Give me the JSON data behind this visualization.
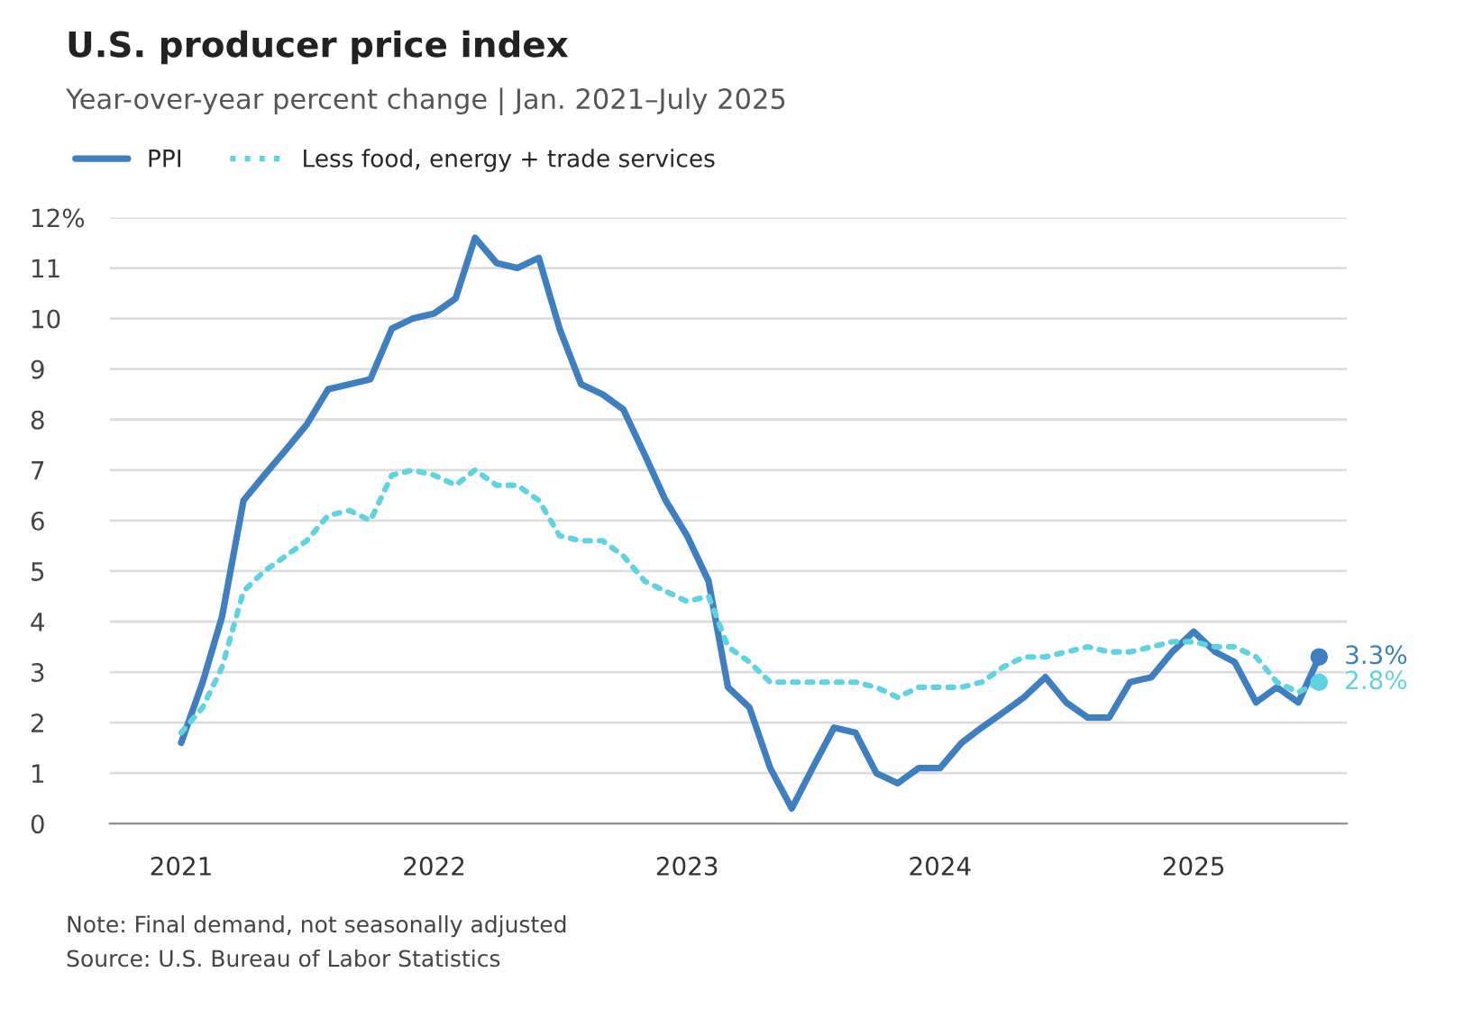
{
  "chart_data": {
    "type": "line",
    "title": "U.S. producer price index",
    "subtitle": "Year-over-year percent change | Jan. 2021–July 2025",
    "x": [
      "2021-01",
      "2021-02",
      "2021-03",
      "2021-04",
      "2021-05",
      "2021-06",
      "2021-07",
      "2021-08",
      "2021-09",
      "2021-10",
      "2021-11",
      "2021-12",
      "2022-01",
      "2022-02",
      "2022-03",
      "2022-04",
      "2022-05",
      "2022-06",
      "2022-07",
      "2022-08",
      "2022-09",
      "2022-10",
      "2022-11",
      "2022-12",
      "2023-01",
      "2023-02",
      "2023-03",
      "2023-04",
      "2023-05",
      "2023-06",
      "2023-07",
      "2023-08",
      "2023-09",
      "2023-10",
      "2023-11",
      "2023-12",
      "2024-01",
      "2024-02",
      "2024-03",
      "2024-04",
      "2024-05",
      "2024-06",
      "2024-07",
      "2024-08",
      "2024-09",
      "2024-10",
      "2024-11",
      "2024-12",
      "2025-01",
      "2025-02",
      "2025-03",
      "2025-04",
      "2025-05",
      "2025-06",
      "2025-07"
    ],
    "series": [
      {
        "name": "PPI",
        "color": "#3d7fc1",
        "line_style": "solid",
        "values": [
          1.6,
          2.8,
          4.1,
          6.4,
          6.9,
          7.4,
          7.9,
          8.6,
          8.7,
          8.8,
          9.8,
          10.0,
          10.1,
          10.4,
          11.6,
          11.1,
          11.0,
          11.2,
          9.8,
          8.7,
          8.5,
          8.2,
          7.3,
          6.4,
          5.7,
          4.8,
          2.7,
          2.3,
          1.1,
          0.3,
          1.1,
          1.9,
          1.8,
          1.0,
          0.8,
          1.1,
          1.1,
          1.6,
          1.9,
          2.2,
          2.5,
          2.9,
          2.4,
          2.1,
          2.1,
          2.8,
          2.9,
          3.4,
          3.8,
          3.4,
          3.2,
          2.4,
          2.7,
          2.4,
          3.3
        ]
      },
      {
        "name": "Less food, energy + trade services",
        "color": "#5fd3e0",
        "line_style": "dotted",
        "values": [
          1.8,
          2.3,
          3.1,
          4.6,
          5.0,
          5.3,
          5.6,
          6.1,
          6.2,
          6.0,
          6.9,
          7.0,
          6.9,
          6.7,
          7.0,
          6.7,
          6.7,
          6.4,
          5.7,
          5.6,
          5.6,
          5.3,
          4.8,
          4.6,
          4.4,
          4.5,
          3.5,
          3.2,
          2.8,
          2.8,
          2.8,
          2.8,
          2.8,
          2.7,
          2.5,
          2.7,
          2.7,
          2.7,
          2.8,
          3.1,
          3.3,
          3.3,
          3.4,
          3.5,
          3.4,
          3.4,
          3.5,
          3.6,
          3.6,
          3.5,
          3.5,
          3.3,
          2.8,
          2.6,
          2.8
        ]
      }
    ],
    "xlim": [
      "2020-09-20",
      "2025-08-10"
    ],
    "xticks": [
      {
        "value": "2021-01-01",
        "label": "2021"
      },
      {
        "value": "2022-01-01",
        "label": "2022"
      },
      {
        "value": "2023-01-01",
        "label": "2023"
      },
      {
        "value": "2024-01-01",
        "label": "2024"
      },
      {
        "value": "2025-01-01",
        "label": "2025"
      }
    ],
    "ylim": [
      0,
      12
    ],
    "yticks": [
      0,
      1,
      2,
      3,
      4,
      5,
      6,
      7,
      8,
      9,
      10,
      11,
      {
        "value": 12,
        "label": "12%"
      }
    ],
    "grid": "y",
    "legend": "top left",
    "annotations": [
      {
        "text": "3.3%",
        "x": "2025-07",
        "y": 3.3
      },
      {
        "text": "2.8%",
        "x": "2025-07",
        "y": 2.8
      },
      "Note: Final demand, not seasonally adjusted",
      "Source: U.S. Bureau of Labor Statistics"
    ]
  }
}
